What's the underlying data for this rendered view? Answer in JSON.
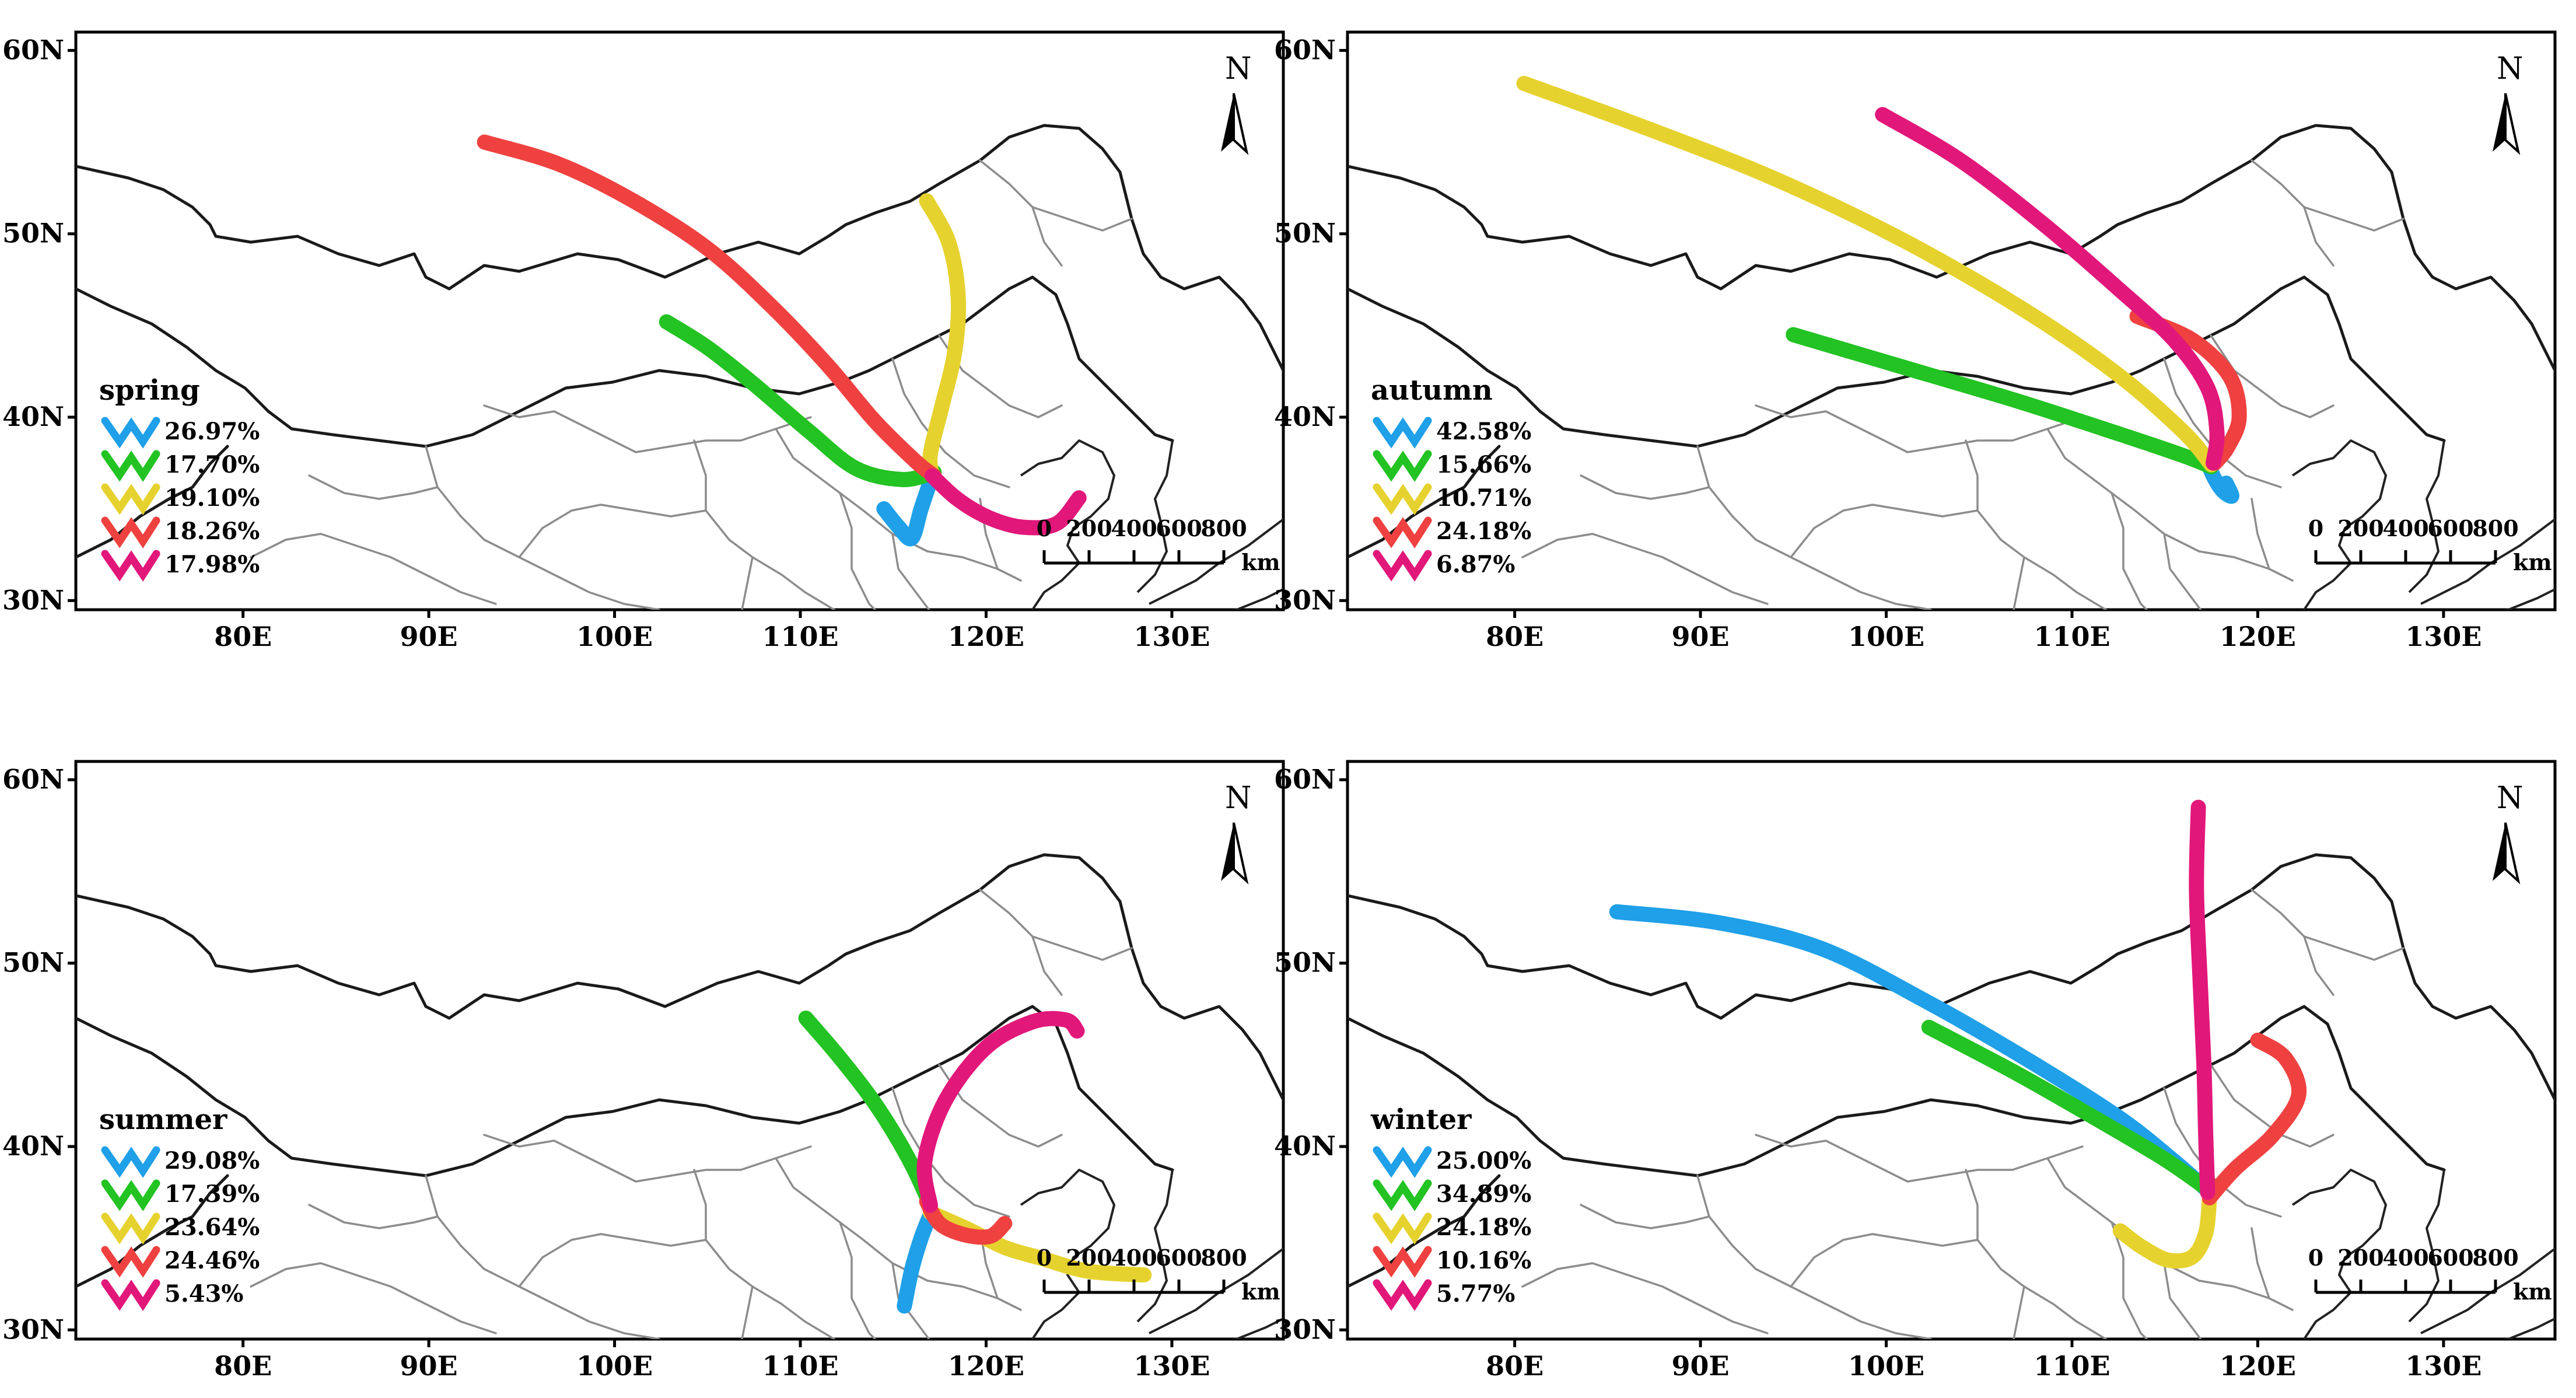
{
  "figure": {
    "north_label": "N",
    "scale": {
      "ticks": [
        "0",
        "200",
        "400",
        "600",
        "800"
      ],
      "unit": "km"
    },
    "x_ticks": [
      "80E",
      "90E",
      "100E",
      "110E",
      "120E",
      "130E"
    ],
    "y_ticks": [
      "60N",
      "50N",
      "40N",
      "30N"
    ],
    "lon_range": [
      71,
      136
    ],
    "lat_range": [
      29.5,
      61
    ],
    "cluster_colors": [
      "#1fa0e8",
      "#22c322",
      "#e6d22e",
      "#ef4140",
      "#e2177a"
    ],
    "panels": [
      {
        "id": "spring",
        "season": "spring",
        "clusters": [
          {
            "percent": "26.97%",
            "path": [
              [
                114.5,
                35.0
              ],
              [
                115.3,
                34.0
              ],
              [
                116.0,
                33.4
              ],
              [
                116.5,
                35.0
              ],
              [
                117.1,
                36.8
              ]
            ]
          },
          {
            "percent": "17.70%",
            "path": [
              [
                102.8,
                45.2
              ],
              [
                105.0,
                43.8
              ],
              [
                107.5,
                41.8
              ],
              [
                110.5,
                39.2
              ],
              [
                113.0,
                37.2
              ],
              [
                115.5,
                36.6
              ],
              [
                117.2,
                37.0
              ]
            ]
          },
          {
            "percent": "19.10%",
            "path": [
              [
                116.8,
                51.8
              ],
              [
                118.0,
                49.5
              ],
              [
                118.5,
                46.5
              ],
              [
                118.3,
                43.5
              ],
              [
                117.6,
                40.5
              ],
              [
                117.0,
                38.0
              ],
              [
                117.1,
                36.8
              ]
            ]
          },
          {
            "percent": "18.26%",
            "path": [
              [
                93.0,
                55.0
              ],
              [
                97.0,
                53.8
              ],
              [
                101.0,
                51.8
              ],
              [
                105.0,
                49.2
              ],
              [
                108.5,
                46.0
              ],
              [
                111.5,
                42.8
              ],
              [
                114.0,
                39.8
              ],
              [
                116.2,
                37.6
              ],
              [
                117.2,
                36.8
              ]
            ]
          },
          {
            "percent": "17.98%",
            "path": [
              [
                117.1,
                36.8
              ],
              [
                118.5,
                35.5
              ],
              [
                120.2,
                34.5
              ],
              [
                122.0,
                34.0
              ],
              [
                123.8,
                34.2
              ],
              [
                125.0,
                35.6
              ]
            ]
          }
        ]
      },
      {
        "id": "autumn",
        "season": "autumn",
        "clusters": [
          {
            "percent": "42.58%",
            "path": [
              [
                117.2,
                37.8
              ],
              [
                117.6,
                36.8
              ],
              [
                118.1,
                36.0
              ],
              [
                118.6,
                35.7
              ],
              [
                118.3,
                36.4
              ]
            ]
          },
          {
            "percent": "15.66%",
            "path": [
              [
                95.0,
                44.5
              ],
              [
                101.0,
                42.7
              ],
              [
                107.0,
                40.9
              ],
              [
                112.5,
                39.1
              ],
              [
                116.0,
                37.9
              ],
              [
                117.5,
                37.3
              ]
            ]
          },
          {
            "percent": "10.71%",
            "path": [
              [
                80.5,
                58.2
              ],
              [
                87.0,
                55.8
              ],
              [
                94.0,
                53.0
              ],
              [
                101.0,
                49.6
              ],
              [
                107.5,
                45.8
              ],
              [
                112.5,
                42.3
              ],
              [
                116.0,
                39.2
              ],
              [
                117.5,
                37.4
              ]
            ]
          },
          {
            "percent": "24.18%",
            "path": [
              [
                113.5,
                45.5
              ],
              [
                116.5,
                44.2
              ],
              [
                118.5,
                42.2
              ],
              [
                119.0,
                40.0
              ],
              [
                118.4,
                38.4
              ],
              [
                117.7,
                37.5
              ]
            ]
          },
          {
            "percent": "6.87%",
            "path": [
              [
                99.8,
                56.5
              ],
              [
                104.0,
                54.0
              ],
              [
                108.5,
                50.5
              ],
              [
                112.5,
                47.0
              ],
              [
                115.5,
                44.2
              ],
              [
                117.3,
                41.6
              ],
              [
                117.8,
                39.2
              ],
              [
                117.6,
                37.5
              ]
            ]
          }
        ]
      },
      {
        "id": "summer",
        "season": "summer",
        "clusters": [
          {
            "percent": "29.08%",
            "path": [
              [
                115.6,
                31.3
              ],
              [
                116.0,
                33.3
              ],
              [
                116.5,
                35.0
              ],
              [
                117.0,
                36.3
              ]
            ]
          },
          {
            "percent": "17.39%",
            "path": [
              [
                110.3,
                47.0
              ],
              [
                112.0,
                45.0
              ],
              [
                113.7,
                42.8
              ],
              [
                115.0,
                40.8
              ],
              [
                116.1,
                38.8
              ],
              [
                117.0,
                36.8
              ]
            ]
          },
          {
            "percent": "23.64%",
            "path": [
              [
                117.0,
                36.4
              ],
              [
                119.0,
                35.5
              ],
              [
                121.0,
                34.5
              ],
              [
                123.0,
                33.9
              ],
              [
                125.5,
                33.2
              ],
              [
                128.5,
                33.0
              ]
            ]
          },
          {
            "percent": "24.46%",
            "path": [
              [
                116.8,
                37.0
              ],
              [
                117.5,
                35.8
              ],
              [
                118.8,
                35.2
              ],
              [
                120.2,
                35.1
              ],
              [
                121.0,
                35.8
              ]
            ]
          },
          {
            "percent": "5.43%",
            "path": [
              [
                117.0,
                36.8
              ],
              [
                116.7,
                39.2
              ],
              [
                117.8,
                42.5
              ],
              [
                120.0,
                45.4
              ],
              [
                122.5,
                46.8
              ],
              [
                124.3,
                46.9
              ],
              [
                124.9,
                46.3
              ]
            ]
          }
        ]
      },
      {
        "id": "winter",
        "season": "winter",
        "clusters": [
          {
            "percent": "25.00%",
            "path": [
              [
                85.5,
                52.8
              ],
              [
                91.0,
                52.2
              ],
              [
                96.5,
                50.8
              ],
              [
                102.0,
                48.0
              ],
              [
                107.5,
                44.8
              ],
              [
                112.5,
                41.6
              ],
              [
                115.5,
                39.2
              ],
              [
                117.3,
                37.6
              ]
            ]
          },
          {
            "percent": "34.89%",
            "path": [
              [
                102.3,
                46.5
              ],
              [
                107.0,
                44.0
              ],
              [
                111.5,
                41.4
              ],
              [
                115.0,
                39.3
              ],
              [
                117.4,
                37.6
              ]
            ]
          },
          {
            "percent": "24.18%",
            "path": [
              [
                112.6,
                35.4
              ],
              [
                113.8,
                34.5
              ],
              [
                115.2,
                33.8
              ],
              [
                116.5,
                34.0
              ],
              [
                117.2,
                35.3
              ],
              [
                117.4,
                37.2
              ]
            ]
          },
          {
            "percent": "10.16%",
            "path": [
              [
                120.0,
                45.8
              ],
              [
                121.5,
                44.8
              ],
              [
                122.2,
                42.8
              ],
              [
                120.8,
                40.6
              ],
              [
                118.8,
                38.8
              ],
              [
                117.4,
                37.2
              ]
            ]
          },
          {
            "percent": "5.77%",
            "path": [
              [
                116.8,
                58.5
              ],
              [
                116.7,
                54.0
              ],
              [
                116.9,
                49.0
              ],
              [
                117.1,
                44.5
              ],
              [
                117.2,
                40.5
              ],
              [
                117.3,
                37.5
              ]
            ]
          }
        ]
      }
    ]
  }
}
